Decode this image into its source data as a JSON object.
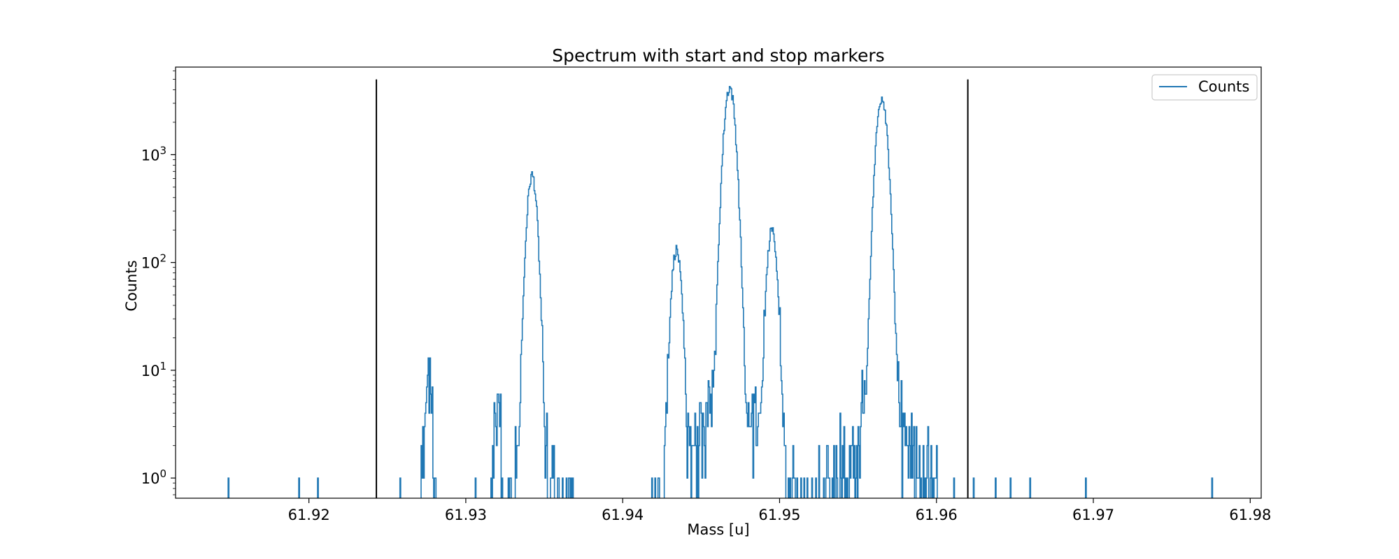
{
  "chart_data": {
    "type": "line",
    "title": "Spectrum with start and stop markers",
    "xlabel": "Mass [u]",
    "ylabel": "Counts",
    "xlim": [
      61.9115,
      61.9807
    ],
    "ylim": [
      0.65,
      6500
    ],
    "yscale": "log",
    "grid": false,
    "legend_position": "top-right",
    "x_ticks": [
      61.92,
      61.93,
      61.94,
      61.95,
      61.96,
      61.97,
      61.98
    ],
    "x_tick_labels": [
      "61.92",
      "61.93",
      "61.94",
      "61.95",
      "61.96",
      "61.97",
      "61.98"
    ],
    "y_ticks": [
      {
        "value": 1,
        "base": "10",
        "exp": "0"
      },
      {
        "value": 10,
        "base": "10",
        "exp": "1"
      },
      {
        "value": 100,
        "base": "10",
        "exp": "2"
      },
      {
        "value": 1000,
        "base": "10",
        "exp": "3"
      }
    ],
    "series": [
      {
        "name": "Counts",
        "color": "#1f77b4",
        "peaks": [
          {
            "center": 61.9276,
            "height": 9,
            "width": 0.00018
          },
          {
            "center": 61.932,
            "height": 5,
            "width": 0.00015
          },
          {
            "center": 61.9342,
            "height": 640,
            "width": 0.00024
          },
          {
            "center": 61.9434,
            "height": 130,
            "width": 0.00024
          },
          {
            "center": 61.9468,
            "height": 4200,
            "width": 0.00027
          },
          {
            "center": 61.9495,
            "height": 200,
            "width": 0.00024
          },
          {
            "center": 61.9565,
            "height": 3400,
            "width": 0.00027
          }
        ],
        "x_range": [
          61.9147,
          61.9777
        ]
      }
    ],
    "markers": [
      {
        "x": 61.9243,
        "y_top": 5000,
        "color": "#000000"
      },
      {
        "x": 61.962,
        "y_top": 5000,
        "color": "#000000"
      }
    ]
  }
}
